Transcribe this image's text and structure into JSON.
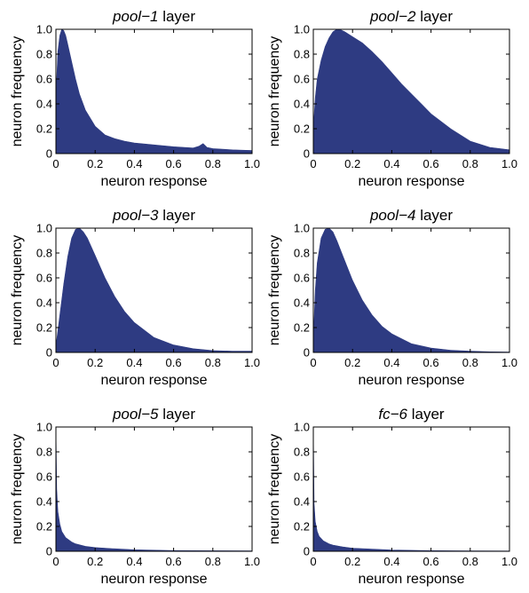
{
  "colors": {
    "fill": "#2e3b82",
    "axis": "#000000"
  },
  "x_ticks": [
    "0",
    "0.2",
    "0.4",
    "0.6",
    "0.8",
    "1.0"
  ],
  "y_ticks": [
    "0",
    "0.2",
    "0.4",
    "0.6",
    "0.8",
    "1.0"
  ],
  "chart_data": [
    {
      "type": "area",
      "title_layer": "pool−1",
      "title_suffix": " layer",
      "xlabel": "neuron response",
      "ylabel": "neuron frequency",
      "xlim": [
        0,
        1
      ],
      "ylim": [
        0,
        1
      ],
      "x": [
        0,
        0.01,
        0.02,
        0.03,
        0.04,
        0.05,
        0.06,
        0.08,
        0.1,
        0.12,
        0.15,
        0.2,
        0.25,
        0.3,
        0.35,
        0.4,
        0.5,
        0.6,
        0.7,
        0.73,
        0.75,
        0.77,
        0.8,
        0.9,
        1.0
      ],
      "y": [
        0.45,
        0.82,
        0.95,
        1.0,
        0.99,
        0.95,
        0.88,
        0.74,
        0.6,
        0.48,
        0.35,
        0.22,
        0.15,
        0.12,
        0.1,
        0.085,
        0.07,
        0.055,
        0.045,
        0.06,
        0.08,
        0.05,
        0.04,
        0.03,
        0.025
      ]
    },
    {
      "type": "area",
      "title_layer": "pool−2",
      "title_suffix": " layer",
      "xlabel": "neuron response",
      "ylabel": "neuron frequency",
      "xlim": [
        0,
        1
      ],
      "ylim": [
        0,
        1
      ],
      "x": [
        0,
        0.01,
        0.02,
        0.04,
        0.06,
        0.08,
        0.1,
        0.12,
        0.14,
        0.16,
        0.2,
        0.25,
        0.3,
        0.35,
        0.4,
        0.45,
        0.5,
        0.55,
        0.6,
        0.7,
        0.8,
        0.9,
        1.0
      ],
      "y": [
        0.2,
        0.45,
        0.6,
        0.75,
        0.86,
        0.93,
        0.98,
        1.0,
        0.995,
        0.98,
        0.94,
        0.89,
        0.82,
        0.74,
        0.65,
        0.56,
        0.48,
        0.4,
        0.32,
        0.2,
        0.1,
        0.05,
        0.03
      ]
    },
    {
      "type": "area",
      "title_layer": "pool−3",
      "title_suffix": " layer",
      "xlabel": "neuron response",
      "ylabel": "neuron frequency",
      "xlim": [
        0,
        1
      ],
      "ylim": [
        0,
        1
      ],
      "x": [
        0,
        0.02,
        0.04,
        0.06,
        0.08,
        0.1,
        0.12,
        0.14,
        0.16,
        0.2,
        0.25,
        0.3,
        0.35,
        0.4,
        0.5,
        0.6,
        0.7,
        0.8,
        0.9,
        1.0
      ],
      "y": [
        0.05,
        0.3,
        0.55,
        0.77,
        0.92,
        0.99,
        1.0,
        0.97,
        0.92,
        0.78,
        0.6,
        0.45,
        0.33,
        0.24,
        0.12,
        0.06,
        0.03,
        0.015,
        0.01,
        0.01
      ]
    },
    {
      "type": "area",
      "title_layer": "pool−4",
      "title_suffix": " layer",
      "xlabel": "neuron response",
      "ylabel": "neuron frequency",
      "xlim": [
        0,
        1
      ],
      "ylim": [
        0,
        1
      ],
      "x": [
        0,
        0.01,
        0.02,
        0.04,
        0.06,
        0.08,
        0.1,
        0.12,
        0.15,
        0.2,
        0.25,
        0.3,
        0.35,
        0.4,
        0.5,
        0.6,
        0.7,
        0.8,
        0.9,
        1.0
      ],
      "y": [
        0.1,
        0.5,
        0.72,
        0.92,
        0.99,
        1.0,
        0.97,
        0.9,
        0.78,
        0.58,
        0.42,
        0.3,
        0.21,
        0.15,
        0.07,
        0.035,
        0.018,
        0.01,
        0.005,
        0.003
      ]
    },
    {
      "type": "area",
      "title_layer": "pool−5",
      "title_suffix": " layer",
      "xlabel": "neuron response",
      "ylabel": "neuron frequency",
      "xlim": [
        0,
        1
      ],
      "ylim": [
        0,
        1
      ],
      "x": [
        0,
        0.004,
        0.01,
        0.02,
        0.03,
        0.05,
        0.08,
        0.1,
        0.15,
        0.2,
        0.3,
        0.4,
        0.6,
        0.8,
        1.0
      ],
      "y": [
        1.0,
        0.5,
        0.32,
        0.22,
        0.16,
        0.11,
        0.075,
        0.06,
        0.04,
        0.03,
        0.02,
        0.012,
        0.006,
        0.004,
        0.003
      ]
    },
    {
      "type": "area",
      "title_layer": "fc−6",
      "title_suffix": " layer",
      "xlabel": "neuron response",
      "ylabel": "neuron frequency",
      "xlim": [
        0,
        1
      ],
      "ylim": [
        0,
        1
      ],
      "x": [
        0,
        0.004,
        0.01,
        0.02,
        0.03,
        0.05,
        0.08,
        0.1,
        0.15,
        0.2,
        0.3,
        0.4,
        0.6,
        0.8,
        1.0
      ],
      "y": [
        1.0,
        0.38,
        0.24,
        0.16,
        0.12,
        0.085,
        0.06,
        0.05,
        0.035,
        0.025,
        0.017,
        0.01,
        0.005,
        0.003,
        0.002
      ]
    }
  ]
}
